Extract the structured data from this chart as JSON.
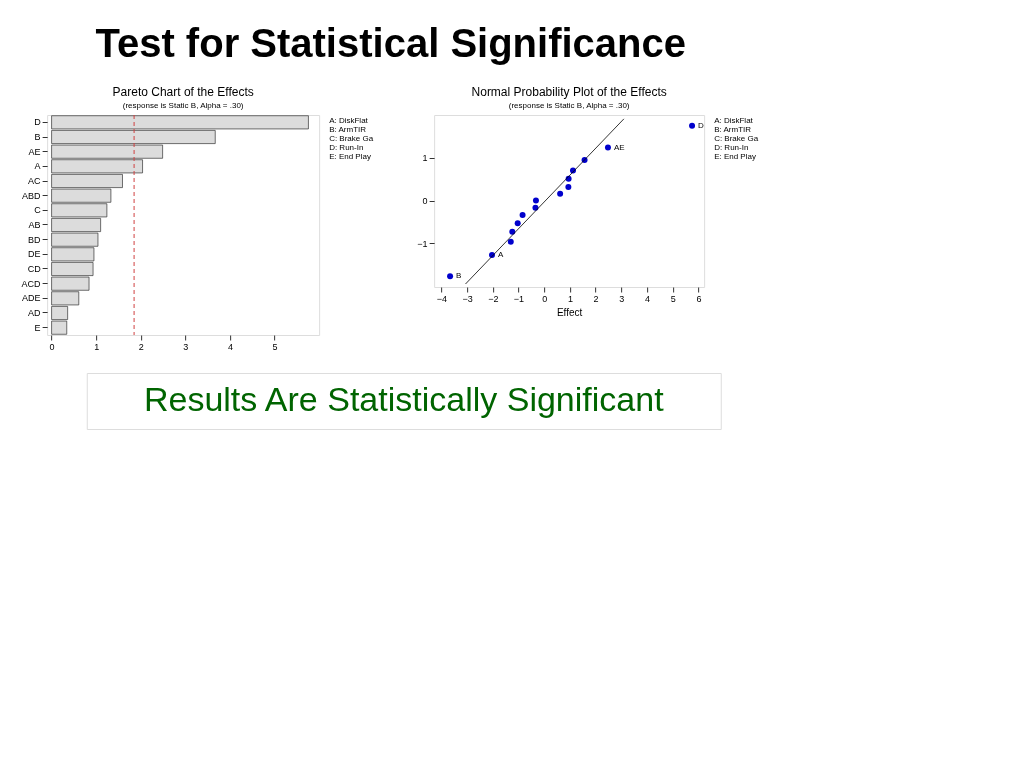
{
  "chart_data": [
    {
      "type": "bar",
      "orientation": "horizontal",
      "title": "Pareto Chart of the Effects",
      "subtitle": "(response is Static B, Alpha = .30)",
      "categories": [
        "D",
        "B",
        "AE",
        "A",
        "AC",
        "ABD",
        "C",
        "AB",
        "BD",
        "DE",
        "CD",
        "ACD",
        "ADE",
        "AD",
        "E"
      ],
      "values": [
        5.76,
        3.67,
        2.49,
        2.04,
        1.59,
        1.33,
        1.24,
        1.1,
        1.04,
        0.95,
        0.93,
        0.84,
        0.61,
        0.36,
        0.34
      ],
      "color": "#dcdcdc",
      "xlim": [
        -0.1,
        6.0
      ],
      "xticks": [
        0,
        1,
        2,
        3,
        4,
        5
      ],
      "grid": false,
      "ref_lines": [
        {
          "axis": "x",
          "value": 1.85,
          "color": "#d04040",
          "line_style": "dashed"
        }
      ],
      "annotations": [
        "Test for Statistical Significance",
        "A:  DiskFlat",
        "B:  ArmTIR",
        "C:  Brake Ga",
        "D:  Run-In",
        "E:  End Play"
      ]
    },
    {
      "type": "scatter",
      "title": "Normal Probability Plot of the Effects",
      "subtitle": "(response is Static B, Alpha = .30)",
      "xlabel": "Effect",
      "series": [
        {
          "color": "#0000cc",
          "x": [
            -3.66,
            -2.03,
            -1.3,
            -1.24,
            -1.03,
            -0.84,
            -0.34,
            -0.32,
            0.62,
            0.94,
            0.95,
            1.12,
            1.57,
            2.48,
            5.75
          ],
          "values": [
            -1.77,
            -1.27,
            -0.96,
            -0.73,
            -0.53,
            -0.34,
            -0.17,
            0.0,
            0.16,
            0.32,
            0.51,
            0.7,
            0.95,
            1.24,
            1.75
          ]
        },
        {
          "type": "line",
          "marker": "none",
          "color": "#000000",
          "x": [
            -3.06,
            3.1
          ],
          "values": [
            -1.95,
            1.91
          ]
        }
      ],
      "marker": "circle",
      "xlim": [
        -4.28,
        6.22
      ],
      "ylim": [
        -2.02,
        2.0
      ],
      "xticks": [
        -4,
        -3,
        -2,
        -1,
        0,
        1,
        2,
        3,
        4,
        5,
        6
      ],
      "yticks": [
        -1,
        0,
        1
      ],
      "grid": false,
      "annotations": [
        "A:  DiskFlat",
        "B:  ArmTIR",
        "C:  Brake Ga",
        "D:  Run-In",
        "E:  End Play",
        {
          "text": "D",
          "x": 5.75,
          "y": 1.75
        },
        {
          "text": "AE",
          "x": 2.48,
          "y": 1.24
        },
        {
          "text": "A",
          "x": -2.03,
          "y": -1.27
        },
        {
          "text": "B",
          "x": -3.66,
          "y": -1.77
        },
        "Results Are Statistically Significant"
      ]
    }
  ]
}
